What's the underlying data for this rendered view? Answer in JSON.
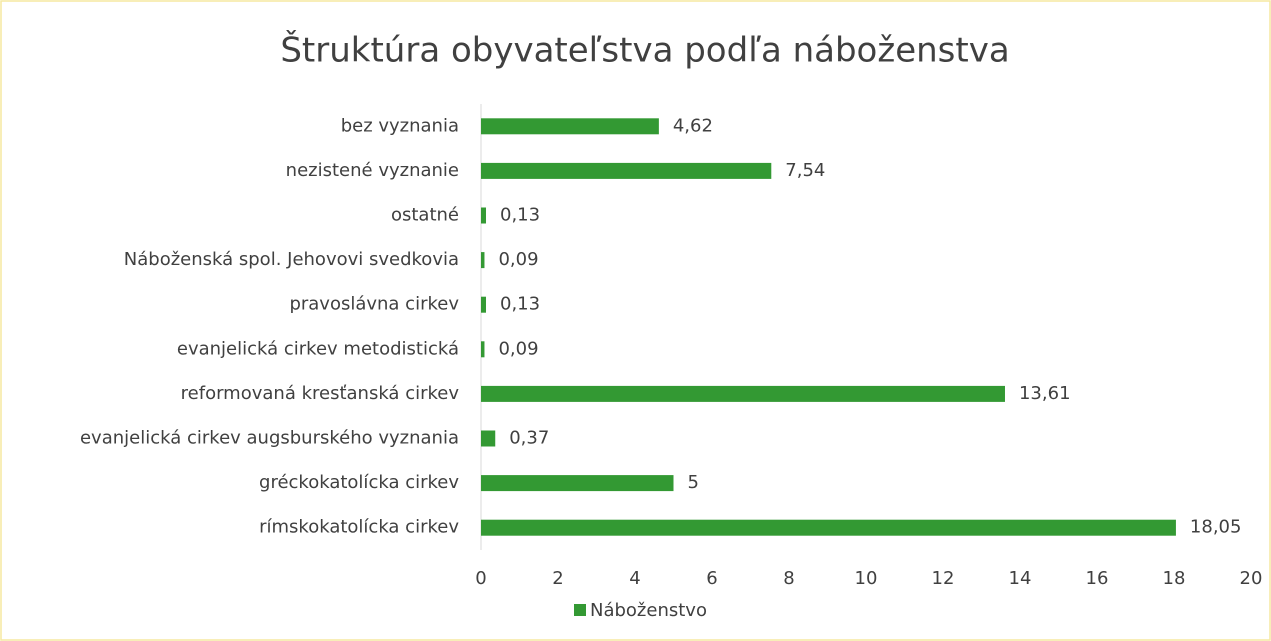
{
  "chart_data": {
    "type": "barh",
    "title": "Štruktúra obyvateľstva podľa náboženstva",
    "categories": [
      "bez vyznania",
      "nezistené vyznanie",
      "ostatné",
      "Náboženská spol. Jehovovi svedkovia",
      "pravoslávna cirkev",
      "evanjelická cirkev metodistická",
      "reformovaná kresťanská cirkev",
      "evanjelická cirkev augsburského vyznania",
      "gréckokatolícka cirkev",
      "rímskokatolícka cirkev"
    ],
    "series": [
      {
        "name": "Náboženstvo",
        "color": "#339933",
        "values": [
          4.62,
          7.54,
          0.13,
          0.09,
          0.13,
          0.09,
          13.61,
          0.37,
          5,
          18.05
        ],
        "value_labels": [
          "4,62",
          "7,54",
          "0,13",
          "0,09",
          "0,13",
          "0,09",
          "13,61",
          "0,37",
          "5",
          "18,05"
        ]
      }
    ],
    "xlim": [
      0,
      20
    ],
    "xticks": [
      0,
      2,
      4,
      6,
      8,
      10,
      12,
      14,
      16,
      18,
      20
    ],
    "grid": false,
    "legend": "bottom"
  }
}
